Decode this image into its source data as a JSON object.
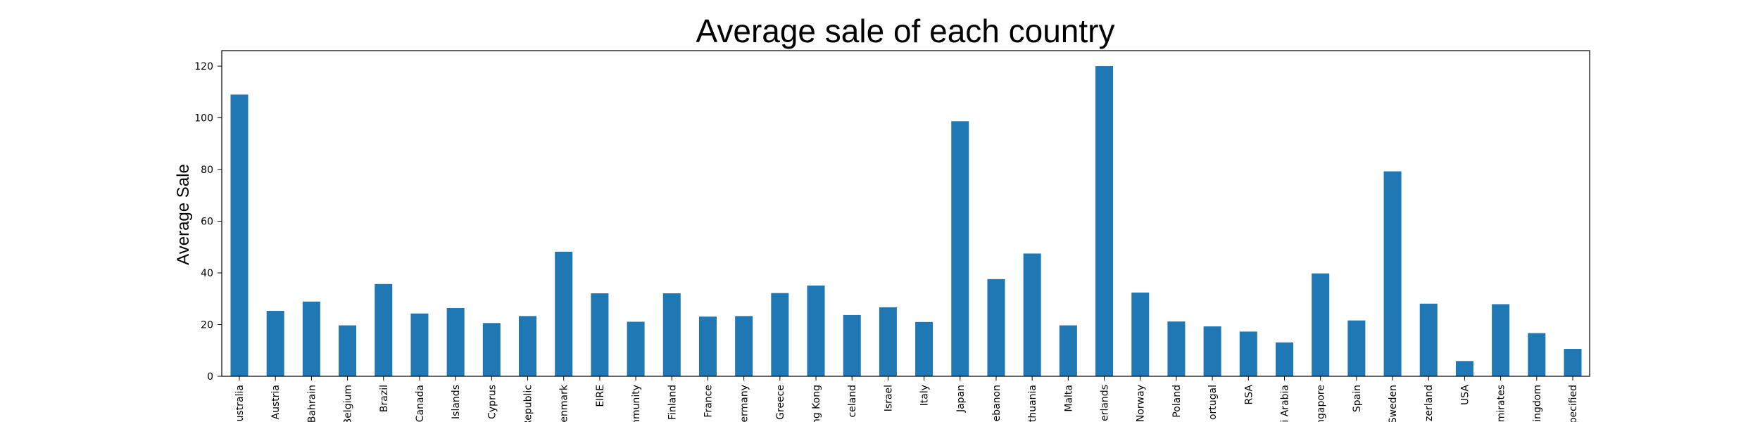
{
  "chart_data": {
    "type": "bar",
    "title": "Average sale of each country",
    "xlabel": "",
    "ylabel": "Average Sale",
    "ylim": [
      0,
      126
    ],
    "yticks": [
      0,
      20,
      40,
      60,
      80,
      100,
      120
    ],
    "grid": false,
    "bar_color": "#1f77b4",
    "categories": [
      "ustralia",
      "Austria",
      "Bahrain",
      "Belgium",
      "Brazil",
      "Canada",
      "l Islands",
      "Cyprus",
      "Republic",
      "enmark",
      "EIRE",
      "mmunity",
      "Finland",
      "France",
      "ermany",
      "Greece",
      "ng Kong",
      "celand",
      "Israel",
      "Italy",
      "Japan",
      "ebanon",
      "thuania",
      "Malta",
      "erlands",
      "Norway",
      "Poland",
      "ortugal",
      "RSA",
      "i Arabia",
      "ngapore",
      "Spain",
      "Sweden",
      "zerland",
      "USA",
      "mirates",
      "Kingdom",
      "pecified"
    ],
    "values": [
      109,
      25.3,
      28.9,
      19.7,
      35.7,
      24.3,
      26.4,
      20.6,
      23.3,
      48.2,
      32.1,
      21.1,
      32.1,
      23.1,
      23.3,
      32.2,
      35.1,
      23.7,
      26.7,
      21,
      98.7,
      37.6,
      47.5,
      19.7,
      120,
      32.4,
      21.2,
      19.3,
      17.3,
      13.1,
      39.8,
      21.6,
      79.3,
      28.1,
      5.9,
      27.9,
      16.7,
      10.6
    ]
  }
}
